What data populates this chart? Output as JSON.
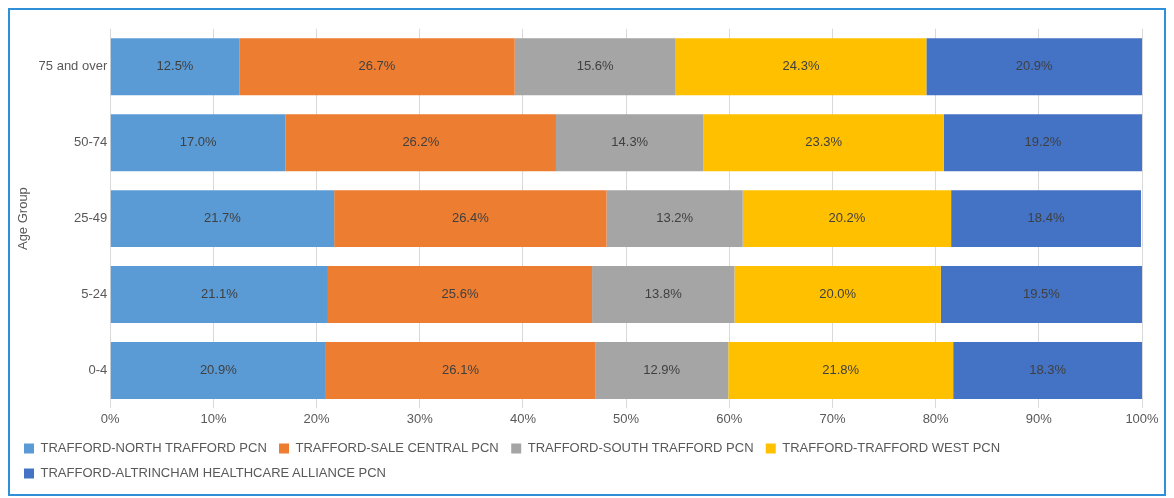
{
  "chart_data": {
    "type": "bar",
    "orientation": "horizontal",
    "stacked": true,
    "ylabel": "Age Group",
    "categories": [
      "75 and over",
      "50-74",
      "25-49",
      "5-24",
      "0-4"
    ],
    "series": [
      {
        "name": "TRAFFORD-NORTH TRAFFORD PCN",
        "color": "#5b9bd5",
        "values": [
          12.5,
          17.0,
          21.7,
          21.1,
          20.9
        ],
        "value_labels": [
          "12.5%",
          "17.0%",
          "21.7%",
          "21.1%",
          "20.9%"
        ]
      },
      {
        "name": "TRAFFORD-SALE CENTRAL PCN",
        "color": "#ed7d31",
        "values": [
          26.7,
          26.2,
          26.4,
          25.6,
          26.1
        ],
        "value_labels": [
          "26.7%",
          "26.2%",
          "26.4%",
          "25.6%",
          "26.1%"
        ]
      },
      {
        "name": "TRAFFORD-SOUTH TRAFFORD PCN",
        "color": "#a5a5a5",
        "values": [
          15.6,
          14.3,
          13.2,
          13.8,
          12.9
        ],
        "value_labels": [
          "15.6%",
          "14.3%",
          "13.2%",
          "13.8%",
          "12.9%"
        ]
      },
      {
        "name": "TRAFFORD-TRAFFORD WEST PCN",
        "color": "#ffc000",
        "values": [
          24.3,
          23.3,
          20.2,
          20.0,
          21.8
        ],
        "value_labels": [
          "24.3%",
          "23.3%",
          "20.2%",
          "20.0%",
          "21.8%"
        ]
      },
      {
        "name": "TRAFFORD-ALTRINCHAM HEALTHCARE ALLIANCE PCN",
        "color": "#4472c4",
        "values": [
          20.9,
          19.2,
          18.4,
          19.5,
          18.3
        ],
        "value_labels": [
          "20.9%",
          "19.2%",
          "18.4%",
          "19.5%",
          "18.3%"
        ]
      }
    ],
    "xlim": [
      0,
      100
    ],
    "xticks": [
      {
        "value": 0,
        "label": "0%"
      },
      {
        "value": 10,
        "label": "10%"
      },
      {
        "value": 20,
        "label": "20%"
      },
      {
        "value": 30,
        "label": "30%"
      },
      {
        "value": 40,
        "label": "40%"
      },
      {
        "value": 50,
        "label": "50%"
      },
      {
        "value": 60,
        "label": "60%"
      },
      {
        "value": 70,
        "label": "70%"
      },
      {
        "value": 80,
        "label": "80%"
      },
      {
        "value": 90,
        "label": "90%"
      },
      {
        "value": 100,
        "label": "100%"
      }
    ],
    "grid": "x",
    "legend": "bottom"
  }
}
